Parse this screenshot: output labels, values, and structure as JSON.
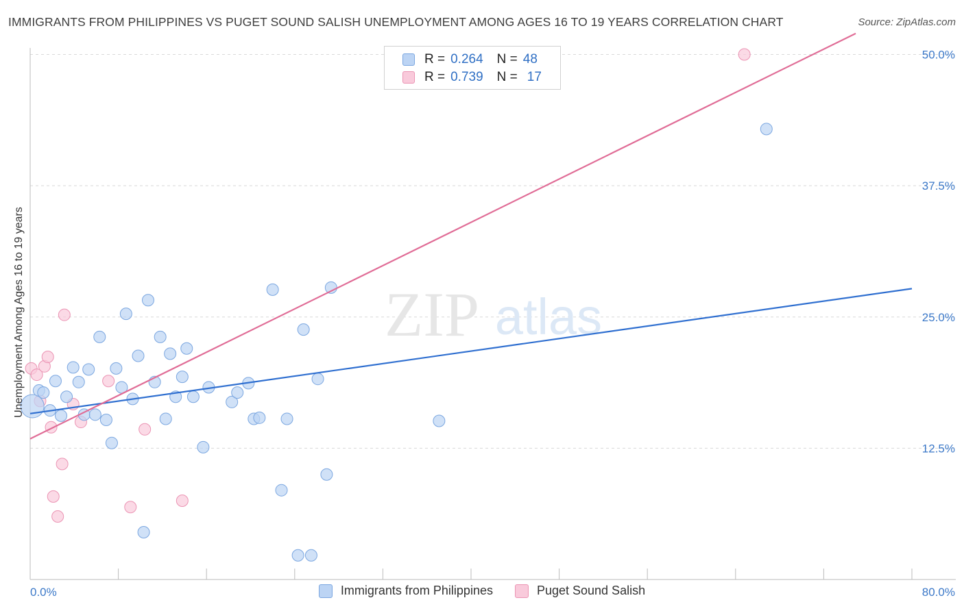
{
  "title": "IMMIGRANTS FROM PHILIPPINES VS PUGET SOUND SALISH UNEMPLOYMENT AMONG AGES 16 TO 19 YEARS CORRELATION CHART",
  "source": "Source: ZipAtlas.com",
  "watermark": {
    "zip": "ZIP",
    "atlas": "atlas"
  },
  "legend": {
    "series1": {
      "r_label": "R =",
      "r_value": "0.264",
      "n_label": "N =",
      "n_value": "48"
    },
    "series2": {
      "r_label": "R =",
      "r_value": "0.739",
      "n_label": "N =",
      "n_value": "17"
    }
  },
  "colors": {
    "blue_fill": "#bcd4f4",
    "blue_stroke": "#7aa6e0",
    "blue_line": "#2f6fd0",
    "pink_fill": "#f9cadb",
    "pink_stroke": "#eb93b3",
    "pink_line": "#e06c96",
    "tick_text": "#3b78c8",
    "grid": "#d8d8d8"
  },
  "chart_data": {
    "type": "scatter",
    "title": "IMMIGRANTS FROM PHILIPPINES VS PUGET SOUND SALISH UNEMPLOYMENT AMONG AGES 16 TO 19 YEARS CORRELATION CHART",
    "xlabel": "",
    "ylabel": "Unemployment Among Ages 16 to 19 years",
    "xlim": [
      0,
      80
    ],
    "ylim": [
      0,
      52.5
    ],
    "x_tick_labels": [
      "0.0%",
      "80.0%"
    ],
    "y_ticks": [
      12.5,
      25.0,
      37.5,
      50.0
    ],
    "y_tick_labels": [
      "12.5%",
      "25.0%",
      "37.5%",
      "50.0%"
    ],
    "series": [
      {
        "name": "Immigrants from Philippines",
        "color": "blue",
        "trend": {
          "x": [
            0,
            80
          ],
          "y": [
            15.8,
            27.7
          ]
        },
        "points": [
          {
            "x": 0.2,
            "y": 16.5,
            "big": true
          },
          {
            "x": 0.8,
            "y": 18.0
          },
          {
            "x": 1.2,
            "y": 17.8
          },
          {
            "x": 1.8,
            "y": 16.1
          },
          {
            "x": 2.3,
            "y": 18.9
          },
          {
            "x": 2.8,
            "y": 15.6
          },
          {
            "x": 3.3,
            "y": 17.4
          },
          {
            "x": 3.9,
            "y": 20.2
          },
          {
            "x": 4.4,
            "y": 18.8
          },
          {
            "x": 4.9,
            "y": 15.7
          },
          {
            "x": 5.3,
            "y": 20.0
          },
          {
            "x": 5.9,
            "y": 15.7
          },
          {
            "x": 6.3,
            "y": 23.1
          },
          {
            "x": 6.9,
            "y": 15.2
          },
          {
            "x": 7.4,
            "y": 13.0
          },
          {
            "x": 7.8,
            "y": 20.1
          },
          {
            "x": 8.3,
            "y": 18.3
          },
          {
            "x": 8.7,
            "y": 25.3
          },
          {
            "x": 9.3,
            "y": 17.2
          },
          {
            "x": 9.8,
            "y": 21.3
          },
          {
            "x": 10.3,
            "y": 4.5
          },
          {
            "x": 10.7,
            "y": 26.6
          },
          {
            "x": 11.3,
            "y": 18.8
          },
          {
            "x": 11.8,
            "y": 23.1
          },
          {
            "x": 12.3,
            "y": 15.3
          },
          {
            "x": 12.7,
            "y": 21.5
          },
          {
            "x": 13.2,
            "y": 17.4
          },
          {
            "x": 13.8,
            "y": 19.3
          },
          {
            "x": 14.2,
            "y": 22.0
          },
          {
            "x": 14.8,
            "y": 17.4
          },
          {
            "x": 15.7,
            "y": 12.6
          },
          {
            "x": 16.2,
            "y": 18.3
          },
          {
            "x": 18.3,
            "y": 16.9
          },
          {
            "x": 18.8,
            "y": 17.8
          },
          {
            "x": 19.8,
            "y": 18.7
          },
          {
            "x": 20.3,
            "y": 15.3
          },
          {
            "x": 20.8,
            "y": 15.4
          },
          {
            "x": 22.0,
            "y": 27.6
          },
          {
            "x": 22.8,
            "y": 8.5
          },
          {
            "x": 23.3,
            "y": 15.3
          },
          {
            "x": 24.3,
            "y": 2.3
          },
          {
            "x": 24.8,
            "y": 23.8
          },
          {
            "x": 25.5,
            "y": 2.3
          },
          {
            "x": 26.1,
            "y": 19.1
          },
          {
            "x": 26.9,
            "y": 10.0
          },
          {
            "x": 27.3,
            "y": 27.8
          },
          {
            "x": 37.1,
            "y": 15.1
          },
          {
            "x": 66.8,
            "y": 42.9
          }
        ]
      },
      {
        "name": "Puget Sound Salish",
        "color": "pink",
        "trend": {
          "x": [
            0,
            74.9
          ],
          "y": [
            13.4,
            52.0
          ]
        },
        "points": [
          {
            "x": 0.1,
            "y": 20.1
          },
          {
            "x": 0.6,
            "y": 19.5
          },
          {
            "x": 0.9,
            "y": 17.0
          },
          {
            "x": 1.3,
            "y": 20.3
          },
          {
            "x": 1.6,
            "y": 21.2
          },
          {
            "x": 1.9,
            "y": 14.5
          },
          {
            "x": 2.1,
            "y": 7.9
          },
          {
            "x": 2.5,
            "y": 6.0
          },
          {
            "x": 2.9,
            "y": 11.0
          },
          {
            "x": 3.1,
            "y": 25.2
          },
          {
            "x": 3.9,
            "y": 16.7
          },
          {
            "x": 4.6,
            "y": 15.0
          },
          {
            "x": 7.1,
            "y": 18.9
          },
          {
            "x": 9.1,
            "y": 6.9
          },
          {
            "x": 10.4,
            "y": 14.3
          },
          {
            "x": 13.8,
            "y": 7.5
          },
          {
            "x": 64.8,
            "y": 50.0
          }
        ]
      }
    ]
  }
}
